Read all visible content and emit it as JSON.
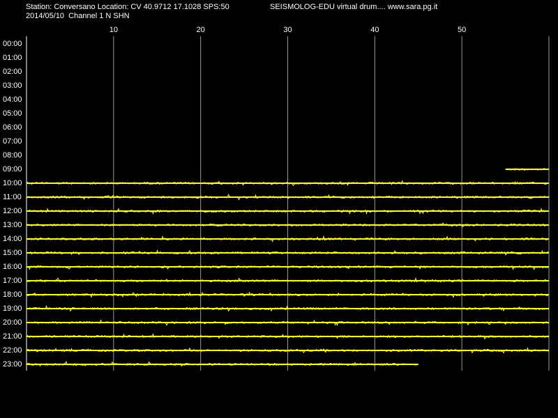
{
  "chart_data": {
    "type": "drum",
    "title": "Station: Conversano Location: CV 40.9712 17.1028 SPS:50",
    "subtitle": "SEISMOLOG-EDU virtual drum.... www.sara.pg.it",
    "date_line": "2014/05/10  Channel 1 N SHN",
    "xlim": [
      0,
      60
    ],
    "xticks": [
      10,
      20,
      30,
      40,
      50
    ],
    "color": "#ffff00",
    "rows": [
      {
        "label": "00:00"
      },
      {
        "label": "01:00"
      },
      {
        "label": "02:00"
      },
      {
        "label": "03:00"
      },
      {
        "label": "04:00"
      },
      {
        "label": "05:00"
      },
      {
        "label": "06:00"
      },
      {
        "label": "07:00"
      },
      {
        "label": "08:00"
      },
      {
        "label": "09:00",
        "start": 55,
        "end": 60
      },
      {
        "label": "10:00",
        "start": 0,
        "end": 60
      },
      {
        "label": "11:00",
        "start": 0,
        "end": 60
      },
      {
        "label": "12:00",
        "start": 0,
        "end": 60
      },
      {
        "label": "13:00",
        "start": 0,
        "end": 60
      },
      {
        "label": "14:00",
        "start": 0,
        "end": 60
      },
      {
        "label": "15:00",
        "start": 0,
        "end": 60
      },
      {
        "label": "16:00",
        "start": 0,
        "end": 60
      },
      {
        "label": "17:00",
        "start": 0,
        "end": 60
      },
      {
        "label": "18:00",
        "start": 0,
        "end": 60
      },
      {
        "label": "19:00",
        "start": 0,
        "end": 60
      },
      {
        "label": "20:00",
        "start": 0,
        "end": 60
      },
      {
        "label": "21:00",
        "start": 0,
        "end": 60
      },
      {
        "label": "22:00",
        "start": 0,
        "end": 60
      },
      {
        "label": "23:00",
        "start": 0,
        "end": 45
      }
    ]
  }
}
